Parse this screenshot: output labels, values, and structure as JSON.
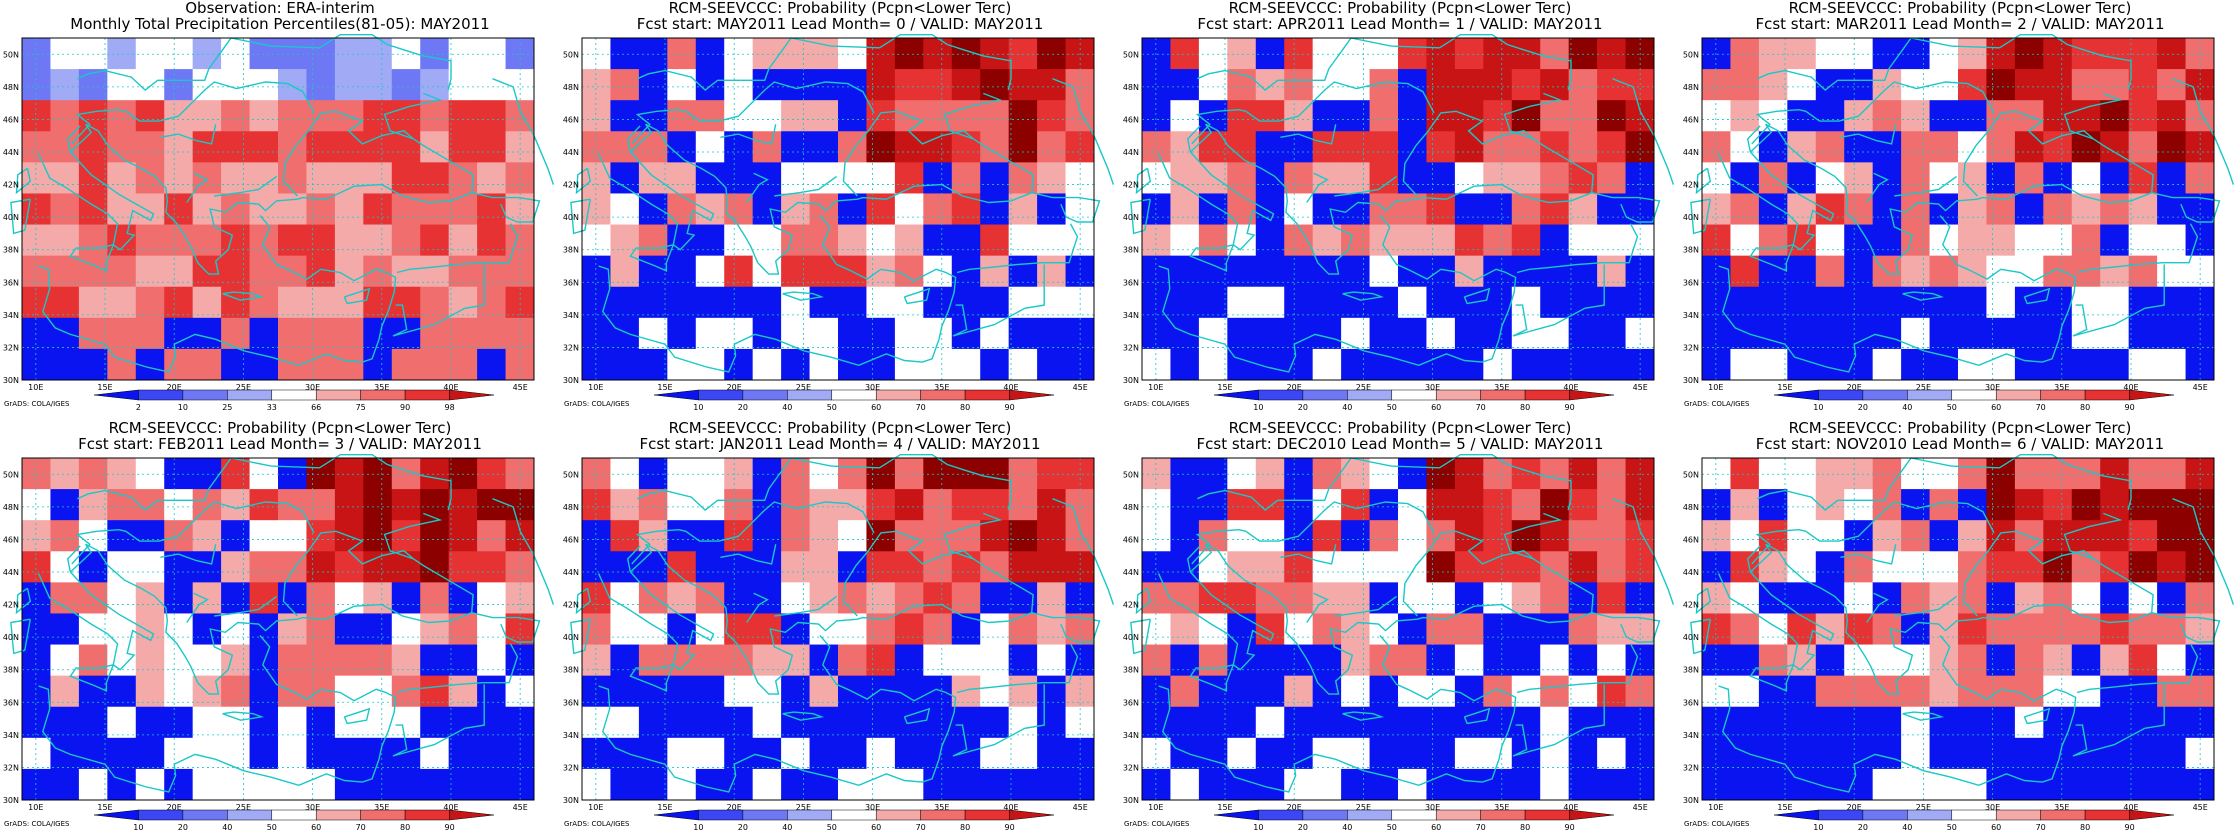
{
  "panels": [
    {
      "title1": "Observation: ERA-interim",
      "title2": "Monthly Total Precipitation Percentiles(81-05): MAY2011",
      "kind": "obs",
      "seed": 1
    },
    {
      "title1": "RCM-SEEVCCC: Probability (Pcpn<Lower Terc)",
      "title2": "Fcst start: MAY2011  Lead Month= 0 / VALID: MAY2011",
      "kind": "prob",
      "seed": 2
    },
    {
      "title1": "RCM-SEEVCCC: Probability (Pcpn<Lower Terc)",
      "title2": "Fcst start: APR2011  Lead Month= 1 / VALID: MAY2011",
      "kind": "prob",
      "seed": 3
    },
    {
      "title1": "RCM-SEEVCCC: Probability (Pcpn<Lower Terc)",
      "title2": "Fcst start: MAR2011  Lead Month= 2 / VALID: MAY2011",
      "kind": "prob",
      "seed": 4
    },
    {
      "title1": "RCM-SEEVCCC: Probability (Pcpn<Lower Terc)",
      "title2": "Fcst start: FEB2011  Lead Month= 3 / VALID: MAY2011",
      "kind": "prob",
      "seed": 5
    },
    {
      "title1": "RCM-SEEVCCC: Probability (Pcpn<Lower Terc)",
      "title2": "Fcst start: JAN2011  Lead Month= 4 / VALID: MAY2011",
      "kind": "prob",
      "seed": 6
    },
    {
      "title1": "RCM-SEEVCCC: Probability (Pcpn<Lower Terc)",
      "title2": "Fcst start: DEC2010  Lead Month= 5 / VALID: MAY2011",
      "kind": "prob",
      "seed": 7
    },
    {
      "title1": "RCM-SEEVCCC: Probability (Pcpn<Lower Terc)",
      "title2": "Fcst start: NOV2010  Lead Month= 6 / VALID: MAY2011",
      "kind": "prob",
      "seed": 8
    }
  ],
  "lon_labels": [
    "10E",
    "15E",
    "20E",
    "25E",
    "30E",
    "35E",
    "40E",
    "45E"
  ],
  "lat_labels": [
    "50N",
    "48N",
    "46N",
    "44N",
    "42N",
    "40N",
    "38N",
    "36N",
    "34N",
    "32N",
    "30N"
  ],
  "colorbar_obs": [
    "2",
    "10",
    "25",
    "33",
    "66",
    "75",
    "90",
    "98"
  ],
  "colorbar_prob": [
    "10",
    "20",
    "40",
    "50",
    "60",
    "70",
    "80",
    "90"
  ],
  "credit": "GrADS: COLA/IGES",
  "colors": {
    "palette": [
      "#0a14f0",
      "#3c46f5",
      "#6e78f5",
      "#a0aaf5",
      "#ffffff",
      "#f5aaaa",
      "#f06e6e",
      "#e63232",
      "#c81414",
      "#8c0000"
    ],
    "coast": "#19c8c8",
    "gridline": "#19c8c8"
  }
}
